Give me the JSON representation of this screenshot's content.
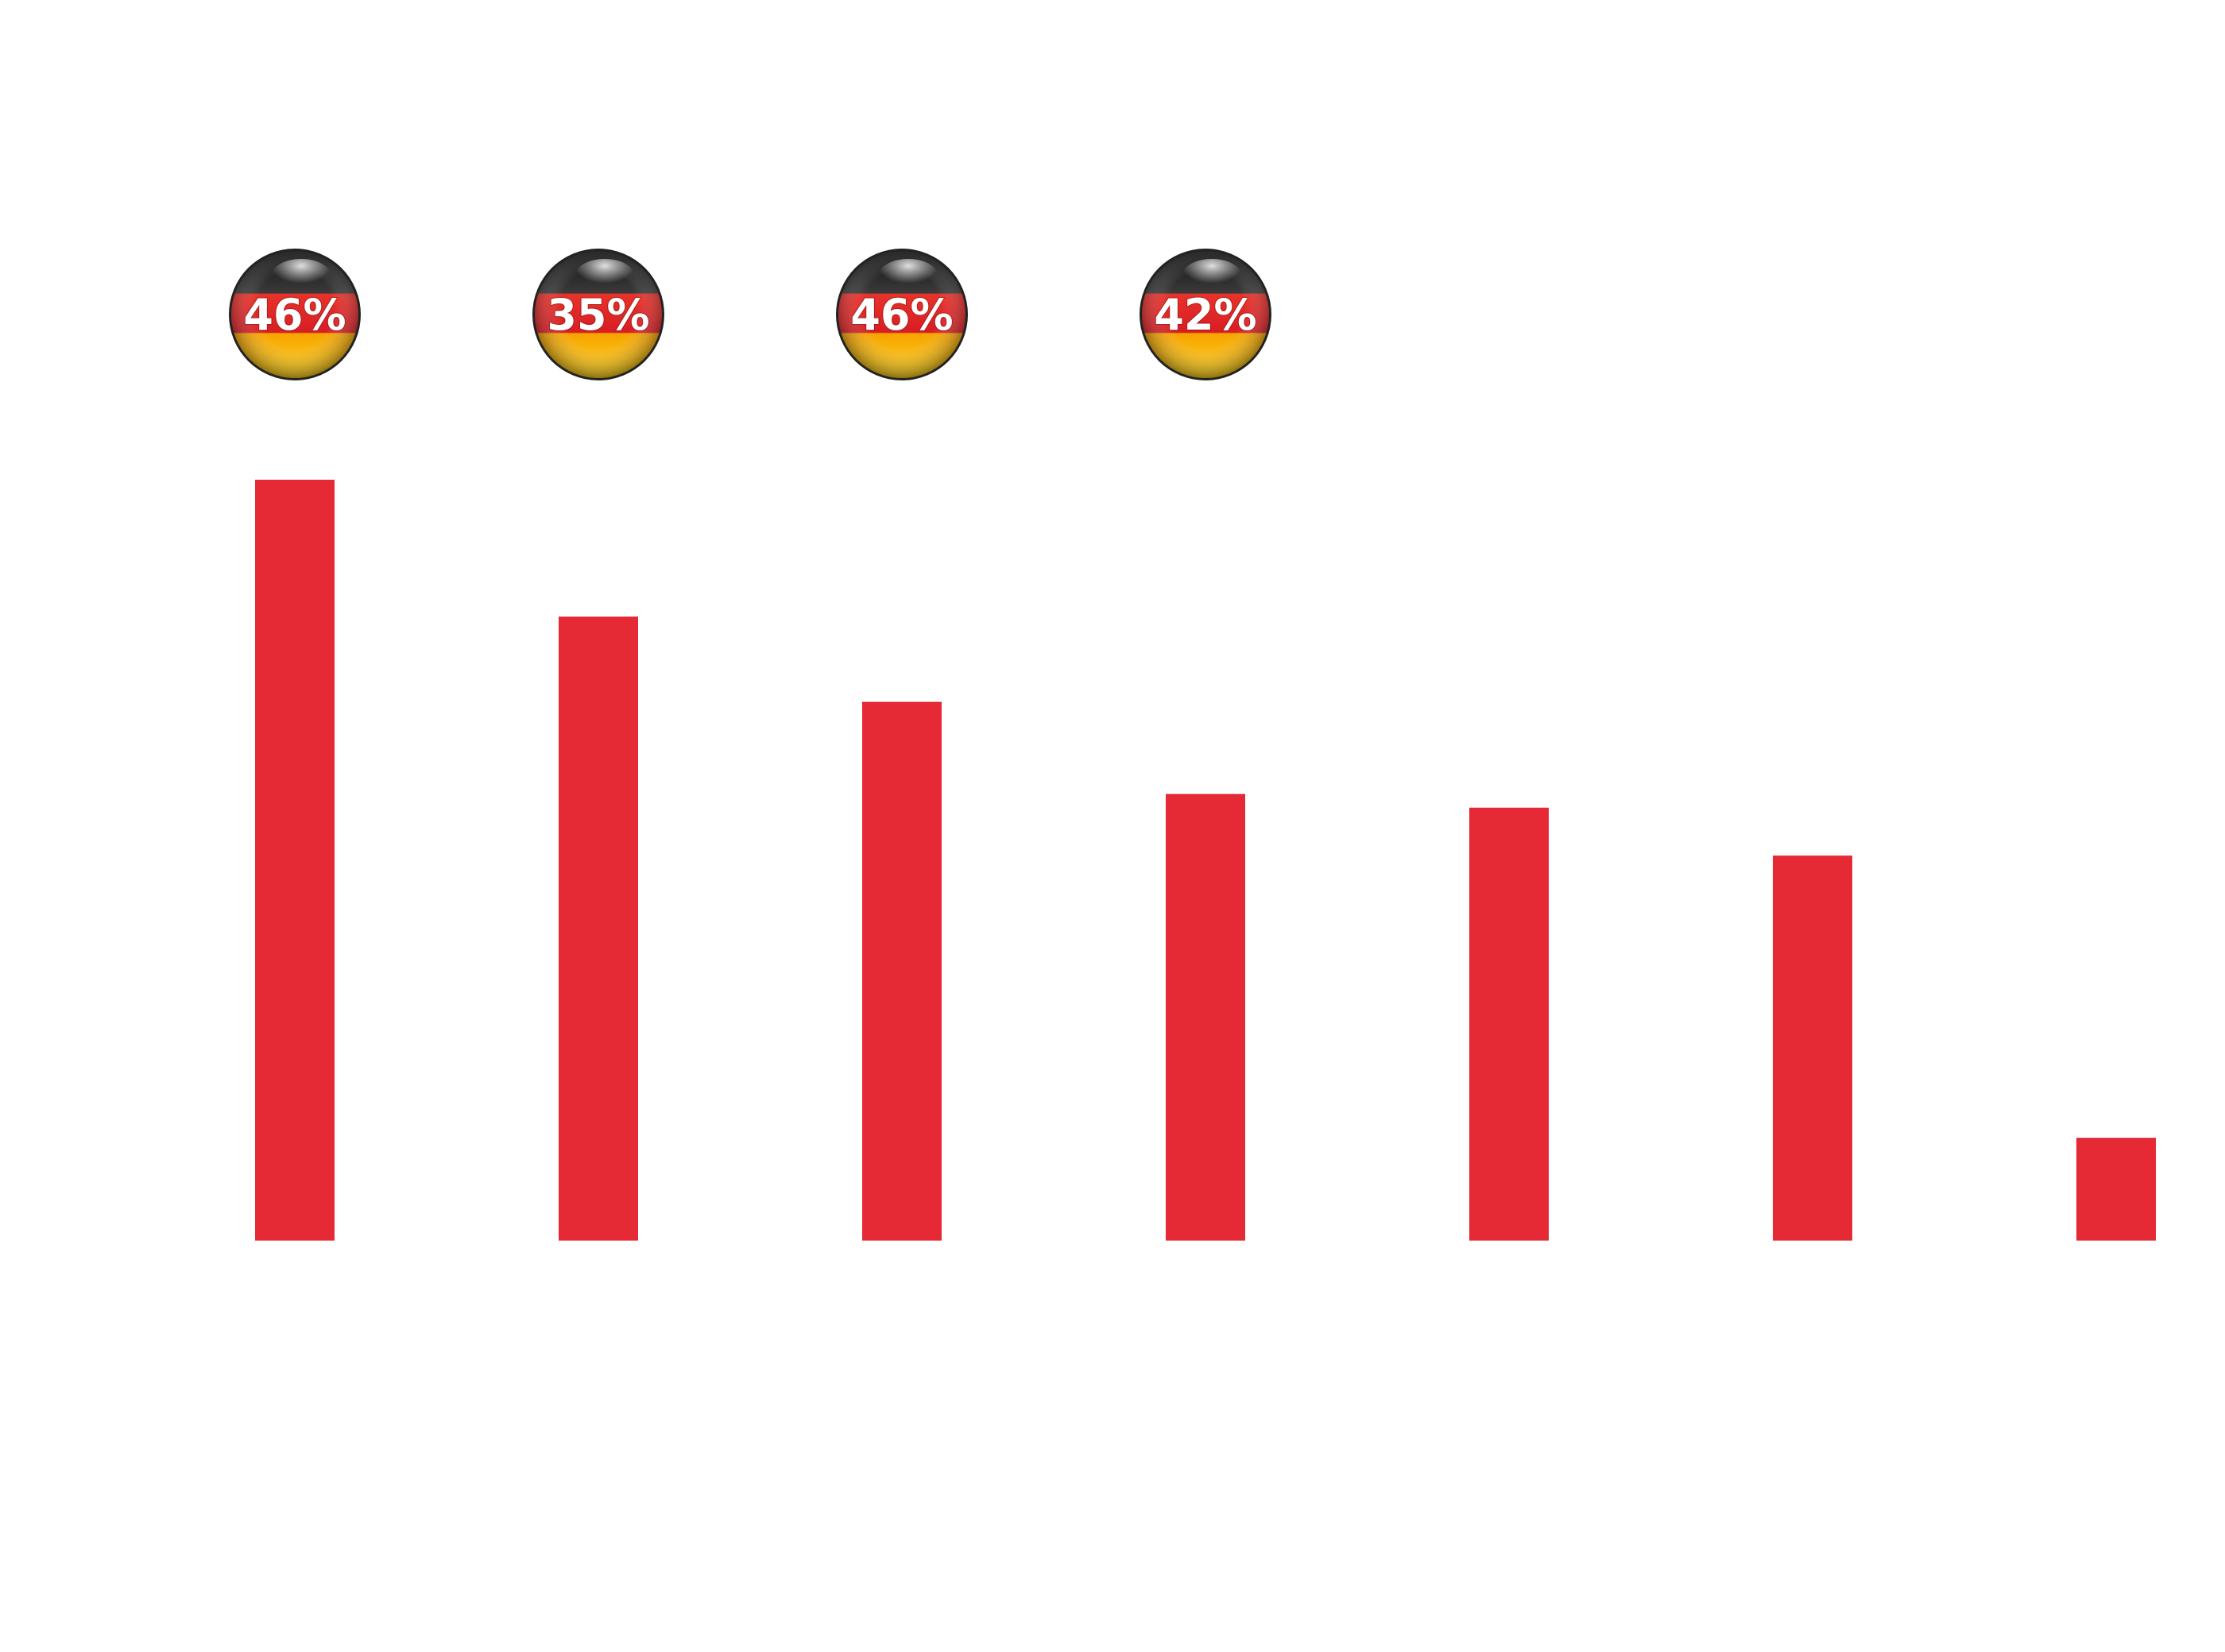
{
  "chart_data": {
    "type": "bar",
    "title": "",
    "xlabel": "",
    "ylabel": "",
    "ylim": [
      0,
      100
    ],
    "series": [
      {
        "values": [
          100,
          82,
          70.8,
          58.7,
          56.9,
          50.6,
          13.5
        ],
        "color": "#e52a35"
      }
    ],
    "badges": [
      {
        "bar_index": 0,
        "label": "46%"
      },
      {
        "bar_index": 1,
        "label": "35%"
      },
      {
        "bar_index": 2,
        "label": "46%"
      },
      {
        "bar_index": 3,
        "label": "42%"
      }
    ],
    "badge_icon": "german-flag-sphere-icon",
    "badge_colors": {
      "black": "#1f1f1f",
      "red": "#dd1f26",
      "gold": "#f7c600"
    }
  }
}
